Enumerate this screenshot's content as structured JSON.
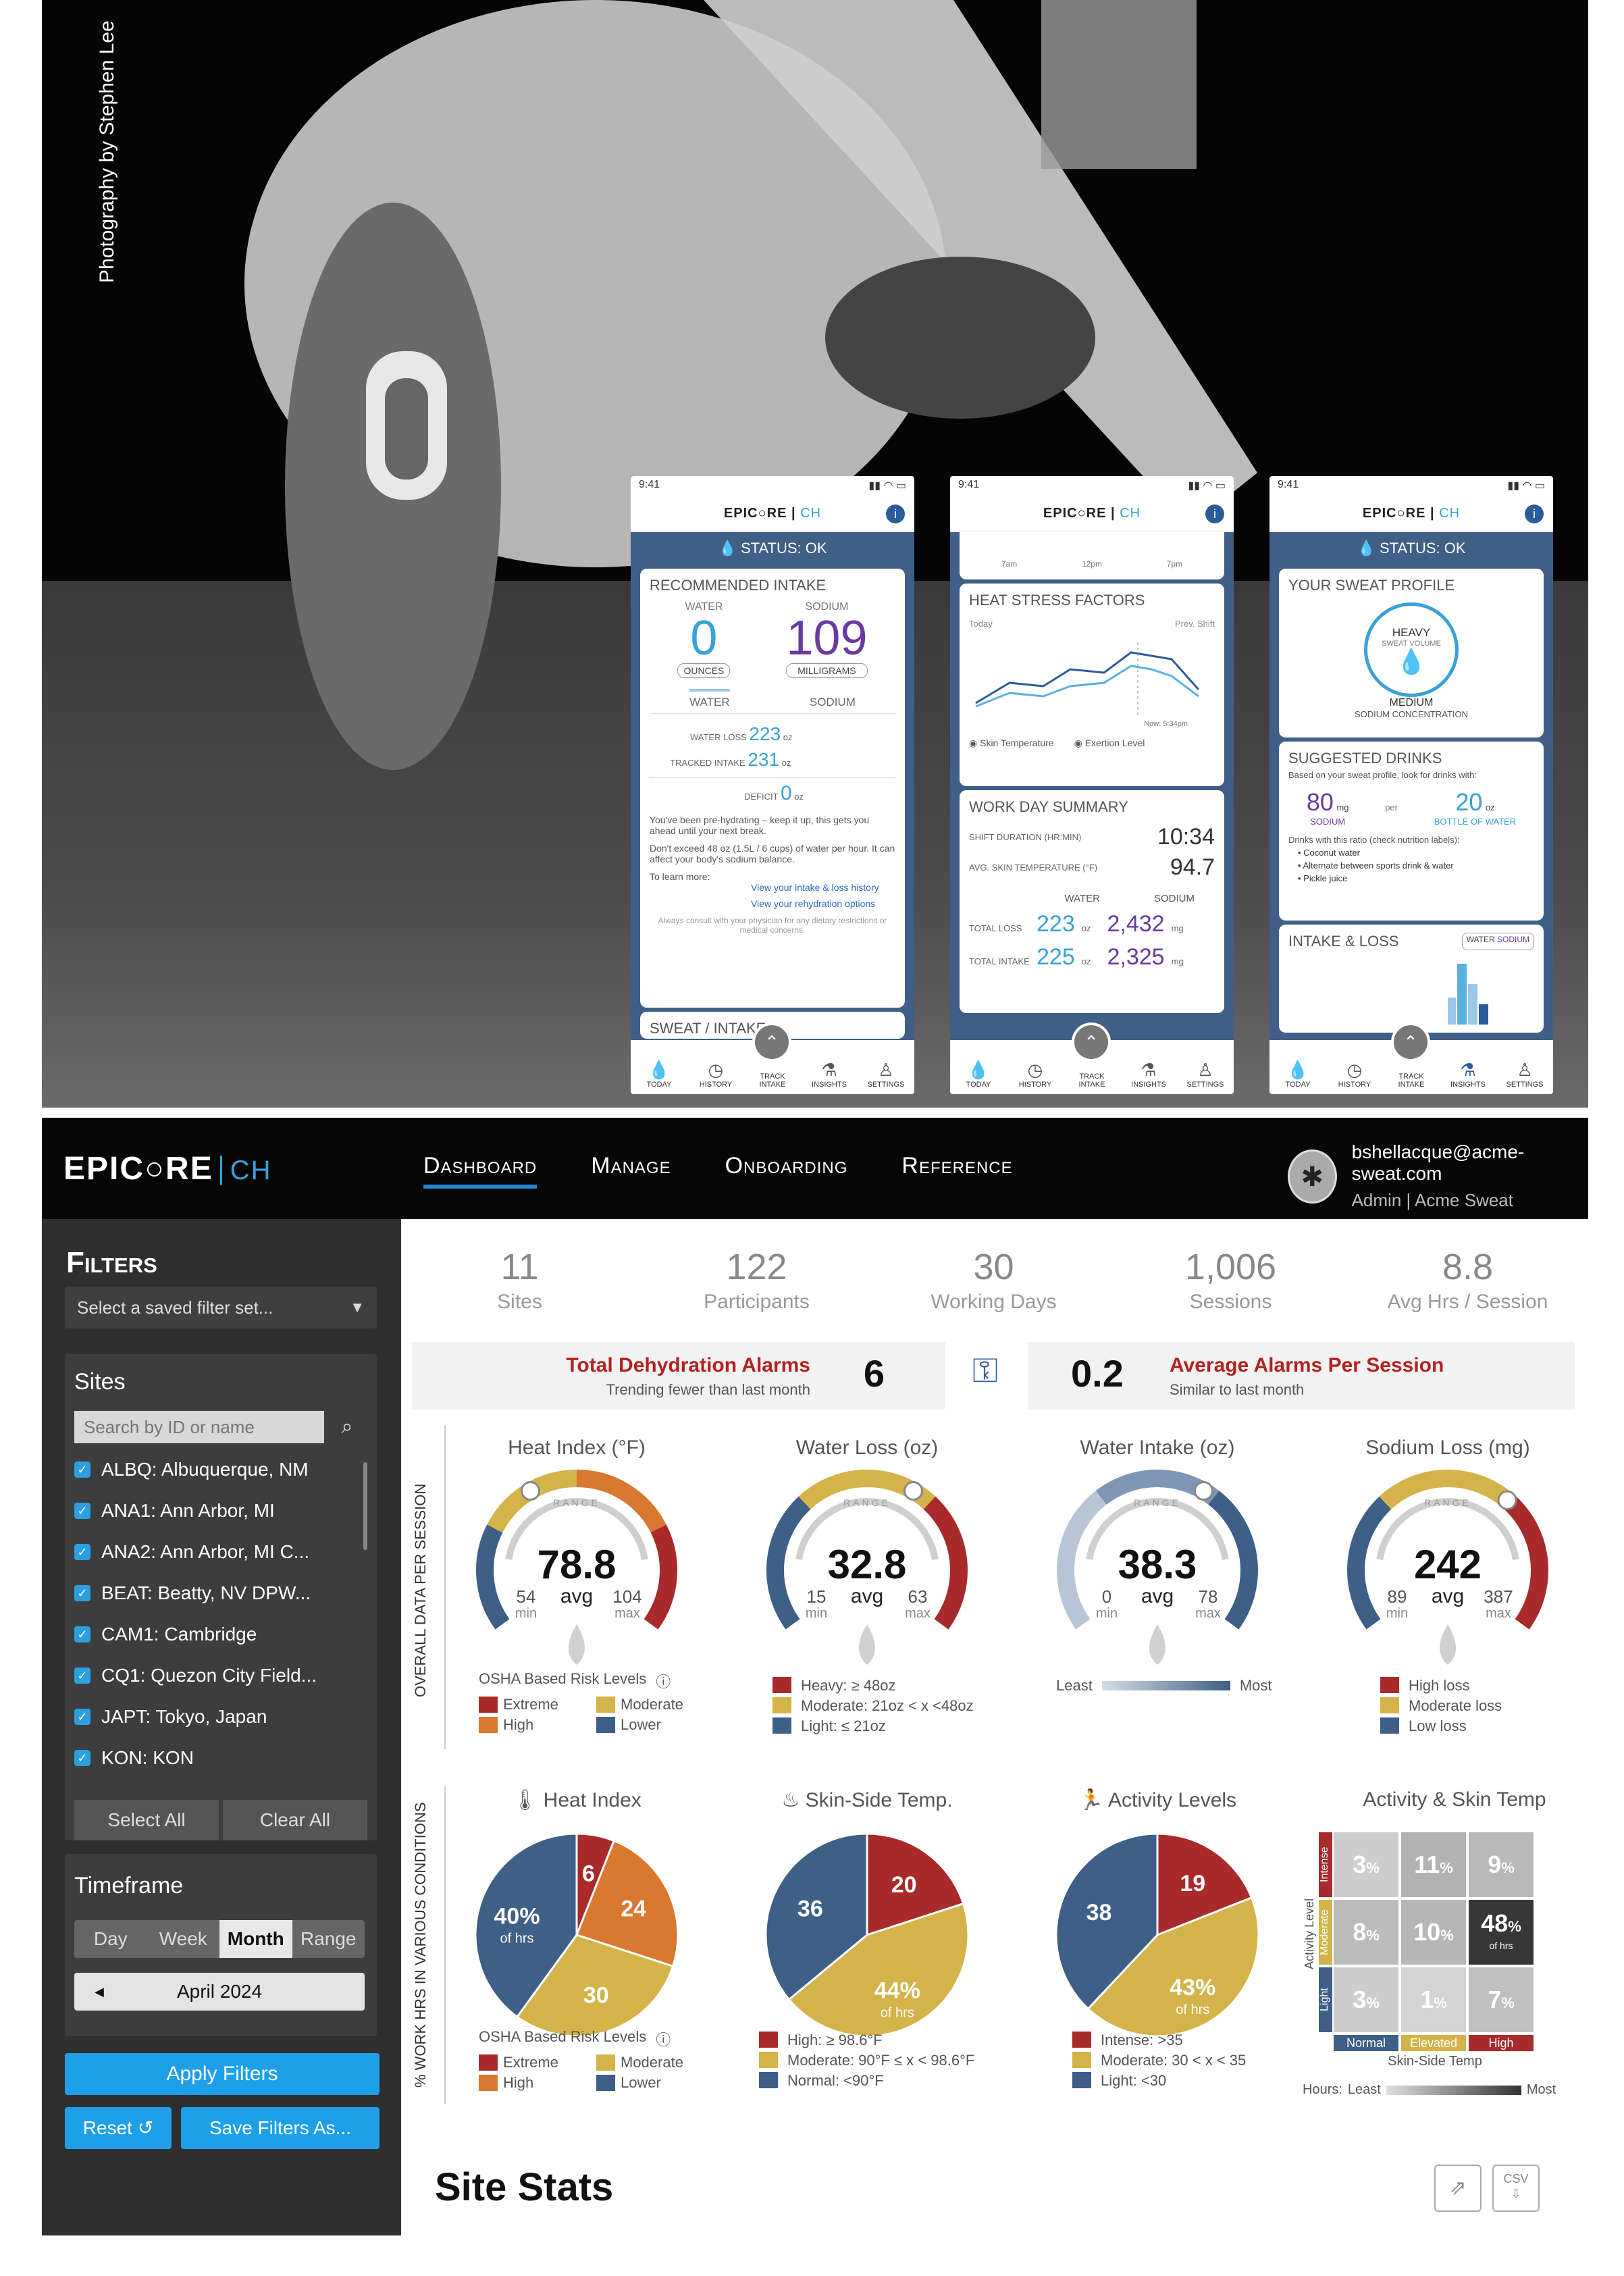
{
  "photo_credit": "Photography by Stephen Lee",
  "phones": [
    {
      "time": "9:41",
      "brand": "EPIC○RE",
      "brand_sub": "CH",
      "status": "STATUS: OK",
      "card1_title": "RECOMMENDED INTAKE",
      "water_label": "WATER",
      "sodium_label": "SODIUM",
      "water_value": "0",
      "sodium_value": "109",
      "water_unit": "OUNCES",
      "sodium_unit": "MILLIGRAMS",
      "tab_water": "WATER",
      "tab_sodium": "SODIUM",
      "water_loss_label": "WATER LOSS",
      "water_loss": "223",
      "tracked_intake_label": "TRACKED INTAKE",
      "tracked_intake": "231",
      "deficit_label": "DEFICIT",
      "deficit": "0",
      "oz": "oz",
      "tip1": "You've been pre-hydrating – keep it up, this gets you ahead until your next break.",
      "tip2": "Don't exceed 48 oz (1.5L / 6 cups) of water per hour. It can affect your body's sodium balance.",
      "tip3": "To learn more:",
      "link1": "View your intake & loss history",
      "link2": "View your rehydration options",
      "disclaimer": "Always consult with your physician for any dietary restrictions or medical concerns.",
      "next_card": "SWEAT / INTAKE"
    },
    {
      "time": "9:41",
      "card1_title": "HEAT STRESS FACTORS",
      "today": "Today",
      "prev_shift": "Prev. Shift",
      "now": "Now: 5:34pm",
      "x_ticks": [
        "7am",
        "12pm",
        "7pm"
      ],
      "toggle1": "Skin Temperature",
      "toggle2": "Exertion Level",
      "card2_title": "WORK DAY SUMMARY",
      "shift_label": "SHIFT DURATION (HR:MIN)",
      "shift_value": "10:34",
      "skin_label": "AVG. SKIN TEMPERATURE (°F)",
      "skin_value": "94.7",
      "col_water": "WATER",
      "col_sodium": "SODIUM",
      "total_loss_label": "TOTAL LOSS",
      "total_loss_water": "223",
      "total_loss_sodium": "2,432",
      "total_intake_label": "TOTAL INTAKE",
      "total_intake_water": "225",
      "total_intake_sodium": "2,325",
      "oz": "oz",
      "mg": "mg"
    },
    {
      "time": "9:41",
      "status": "STATUS: OK",
      "card1_title": "YOUR SWEAT PROFILE",
      "heavy": "HEAVY",
      "sweat_volume": "SWEAT VOLUME",
      "medium": "MEDIUM",
      "sodium_conc": "SODIUM CONCENTRATION",
      "card2_title": "SUGGESTED DRINKS",
      "card2_sub": "Based on your sweat profile, look for drinks with:",
      "sodium_amt": "80",
      "mg": "mg",
      "sodium_word": "SODIUM",
      "per": "per",
      "water_amt": "20",
      "oz": "oz",
      "bottle": "BOTTLE OF WATER",
      "ratio_note": "Drinks with this ratio (check nutrition labels):",
      "drinks": [
        "Coconut water",
        "Alternate between sports drink & water",
        "Pickle juice"
      ],
      "card3_title": "INTAKE & LOSS",
      "toggle_water": "WATER",
      "toggle_sodium": "SODIUM"
    }
  ],
  "tabbar": {
    "today": "TODAY",
    "history": "HISTORY",
    "track": "TRACK INTAKE",
    "insights": "INSIGHTS",
    "settings": "SETTINGS"
  },
  "nav": {
    "brand": "EPIC○RE",
    "brand_sub": "CH",
    "items": [
      "Dashboard",
      "Manage",
      "Onboarding",
      "Reference"
    ],
    "user_email": "bshellacque@acme-sweat.com",
    "user_role": "Admin | Acme Sweat"
  },
  "sidebar": {
    "title": "Filters",
    "saved_placeholder": "Select a saved filter set...",
    "sites_label": "Sites",
    "search_placeholder": "Search by ID or name",
    "sites": [
      "ALBQ: Albuquerque, NM",
      "ANA1: Ann Arbor, MI",
      "ANA2: Ann Arbor, MI C...",
      "BEAT: Beatty, NV DPW...",
      "CAM1: Cambridge",
      "CQ1: Quezon City Field...",
      "JAPT: Tokyo, Japan",
      "KON: KON"
    ],
    "select_all": "Select All",
    "clear_all": "Clear All",
    "timeframe_label": "Timeframe",
    "timeframes": [
      "Day",
      "Week",
      "Month",
      "Range"
    ],
    "selected_timeframe": "Month",
    "date": "April 2024",
    "apply": "Apply Filters",
    "reset": "Reset",
    "save": "Save Filters As..."
  },
  "kpis": [
    {
      "value": "11",
      "label": "Sites"
    },
    {
      "value": "122",
      "label": "Participants"
    },
    {
      "value": "30",
      "label": "Working Days"
    },
    {
      "value": "1,006",
      "label": "Sessions"
    },
    {
      "value": "8.8",
      "label": "Avg Hrs / Session"
    }
  ],
  "alarms": {
    "total_title": "Total Dehydration Alarms",
    "total_sub": "Trending fewer than last month",
    "total_value": "6",
    "avg_value": "0.2",
    "avg_title": "Average Alarms Per Session",
    "avg_sub": "Similar to last month"
  },
  "section1_label": "Overall Data Per Session",
  "section2_label": "% Work Hrs in Various Conditions",
  "gauges": [
    {
      "title": "Heat Index (°F)",
      "value": "78.8",
      "avg": "avg",
      "min": "54",
      "max": "104",
      "min_label": "min",
      "max_label": "max",
      "range": "RANGE",
      "pos": 0.38
    },
    {
      "title": "Water Loss (oz)",
      "value": "32.8",
      "avg": "avg",
      "min": "15",
      "max": "63",
      "min_label": "min",
      "max_label": "max",
      "range": "RANGE",
      "pos": 0.62
    },
    {
      "title": "Water Intake (oz)",
      "value": "38.3",
      "avg": "avg",
      "min": "0",
      "max": "78",
      "min_label": "min",
      "max_label": "max",
      "range": "RANGE",
      "pos": 0.62
    },
    {
      "title": "Sodium Loss (mg)",
      "value": "242",
      "avg": "avg",
      "min": "89",
      "max": "387",
      "min_label": "min",
      "max_label": "max",
      "range": "RANGE",
      "pos": 0.66
    }
  ],
  "gauge_legends": {
    "osha_title": "OSHA Based Risk Levels",
    "osha": [
      "Extreme",
      "Moderate",
      "High",
      "Lower"
    ],
    "water_loss": [
      "Heavy: ≥ 48oz",
      "Moderate: 21oz < x <48oz",
      "Light: ≤ 21oz"
    ],
    "intake_least": "Least",
    "intake_most": "Most",
    "sodium": [
      "High loss",
      "Moderate loss",
      "Low loss"
    ]
  },
  "colors": {
    "red": "#a92a2a",
    "yellow": "#d4b44a",
    "blue": "#3e5f86",
    "orange": "#d9782e",
    "grey": "#bbbbbb"
  },
  "chart_data": [
    {
      "type": "pie",
      "title": "Heat Index",
      "labels": [
        "Extreme",
        "High",
        "Moderate",
        "Lower"
      ],
      "values": [
        6,
        24,
        30,
        40
      ],
      "value_labels": [
        "6",
        "24",
        "30",
        "40%"
      ],
      "unit_label": "of hrs"
    },
    {
      "type": "pie",
      "title": "Skin-Side Temp.",
      "labels": [
        "High: ≥ 98.6°F",
        "Moderate:  90°F ≤ x < 98.6°F",
        "Normal:  <90°F"
      ],
      "values": [
        20,
        44,
        36
      ],
      "value_labels": [
        "20",
        "44%",
        "36"
      ],
      "unit_label": "of hrs"
    },
    {
      "type": "pie",
      "title": "Activity Levels",
      "labels": [
        "Intense: >35",
        "Moderate: 30 < x < 35",
        "Light: <30"
      ],
      "values": [
        19,
        43,
        38
      ],
      "value_labels": [
        "19",
        "43%",
        "38"
      ],
      "unit_label": "of hrs"
    },
    {
      "type": "heatmap",
      "title": "Activity & Skin Temp",
      "rows": [
        "Intense",
        "Moderate",
        "Light"
      ],
      "cols": [
        "Normal",
        "Elevated",
        "High"
      ],
      "values": [
        [
          3,
          11,
          9
        ],
        [
          8,
          10,
          48
        ],
        [
          3,
          1,
          7
        ]
      ],
      "ylabel": "Activity Level",
      "xlabel": "Skin-Side Temp",
      "legend_title": "Hours:",
      "legend_least": "Least",
      "legend_most": "Most",
      "percent": "%",
      "of_hrs": "of hrs"
    }
  ],
  "site_stats": "Site Stats",
  "csv": "CSV"
}
